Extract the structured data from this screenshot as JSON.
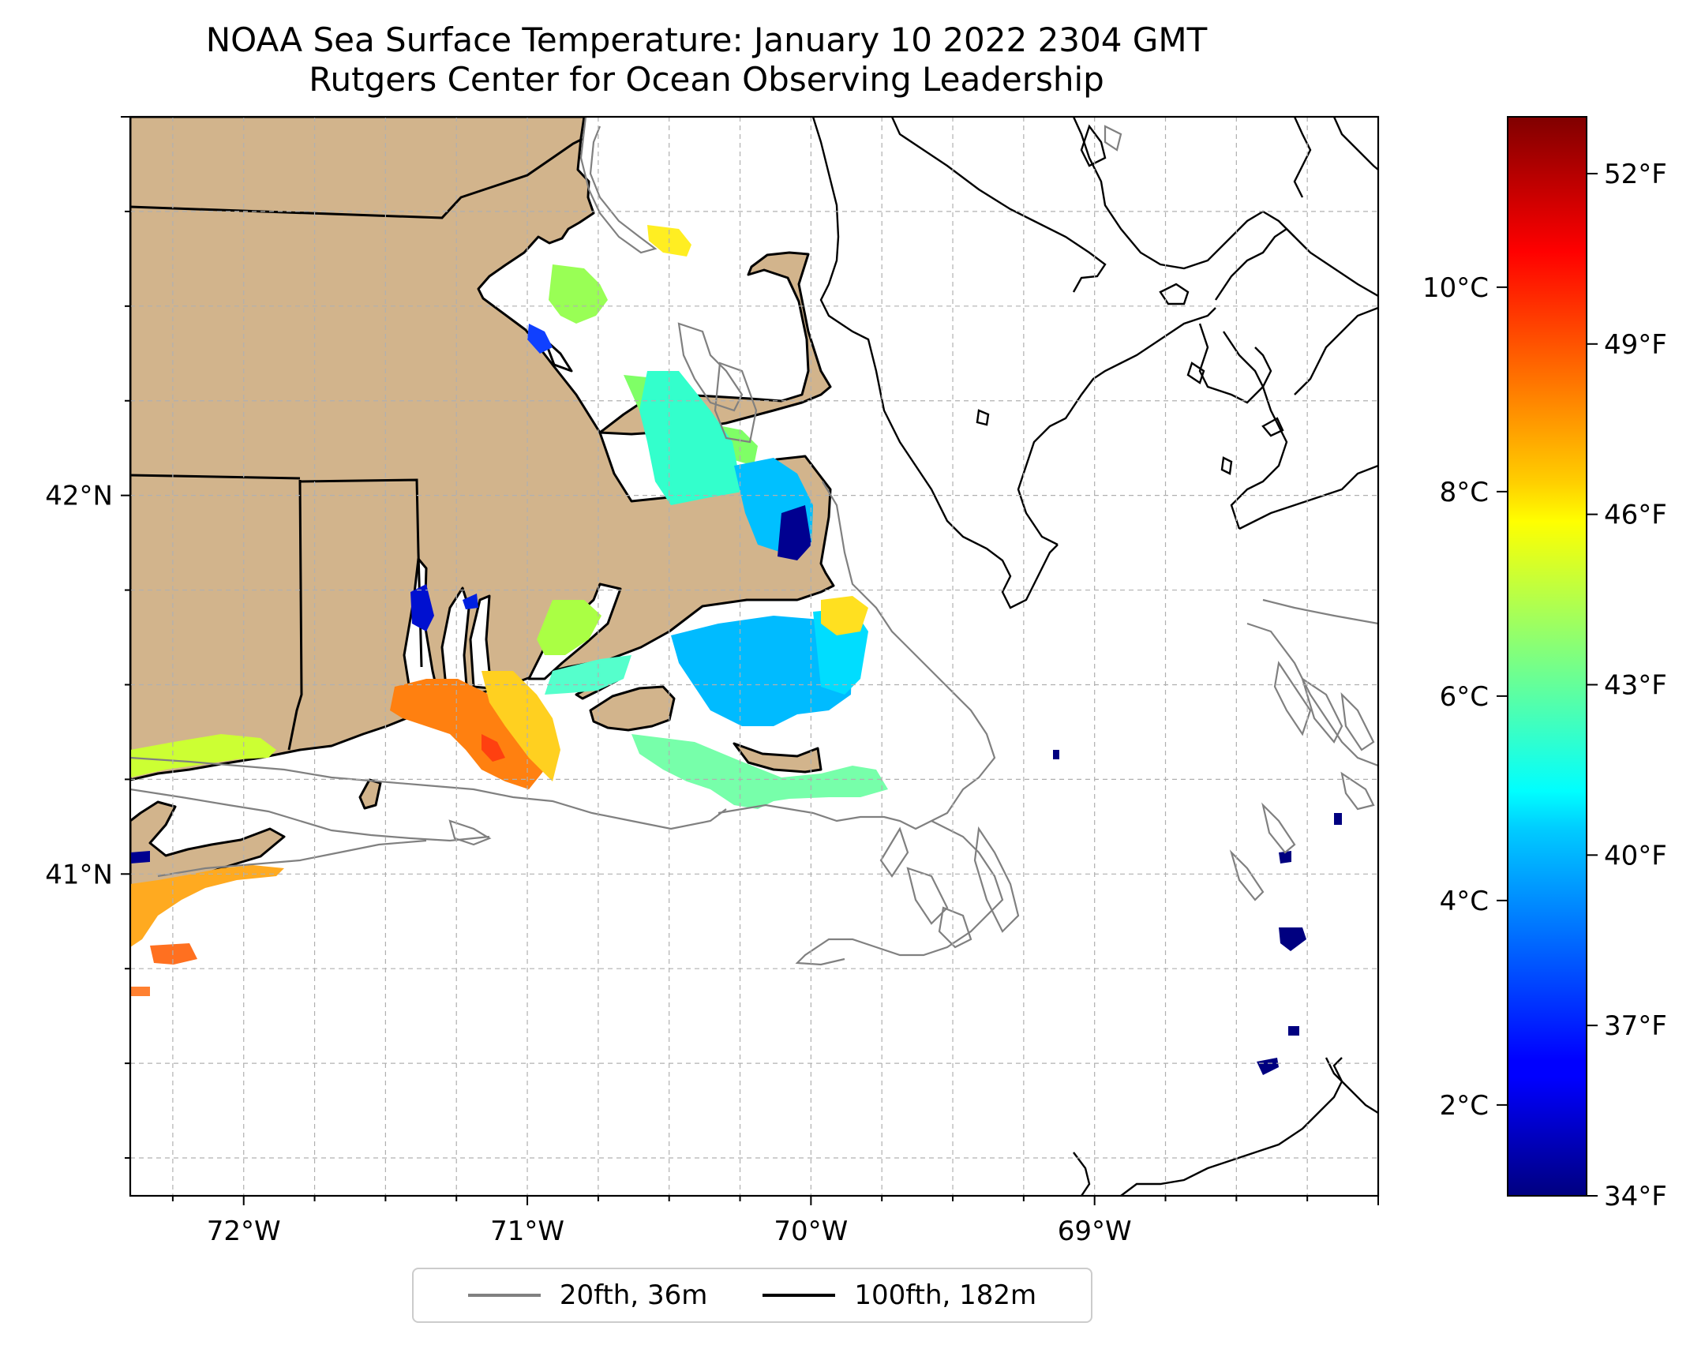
{
  "title": {
    "line1": "NOAA Sea Surface Temperature: January 10 2022 2304 GMT",
    "line2": "Rutgers Center for Ocean Observing Leadership"
  },
  "map": {
    "lon_range": [
      -72.4,
      -68.0
    ],
    "lat_range": [
      40.15,
      43.0
    ],
    "lon_ticks": [
      {
        "value": -72,
        "label": "72°W"
      },
      {
        "value": -71,
        "label": "71°W"
      },
      {
        "value": -70,
        "label": "70°W"
      },
      {
        "value": -69,
        "label": "69°W"
      }
    ],
    "lat_ticks": [
      {
        "value": 41,
        "label": "41°N"
      },
      {
        "value": 42,
        "label": "42°N"
      }
    ],
    "land_color": "#d2b48c",
    "grid": true
  },
  "colorbar": {
    "colormap": "jet",
    "range_f": [
      34,
      53
    ],
    "celsius_ticks": [
      {
        "value": 2,
        "label": "2°C"
      },
      {
        "value": 4,
        "label": "4°C"
      },
      {
        "value": 6,
        "label": "6°C"
      },
      {
        "value": 8,
        "label": "8°C"
      },
      {
        "value": 10,
        "label": "10°C"
      }
    ],
    "fahrenheit_ticks": [
      {
        "value": 34,
        "label": "34°F"
      },
      {
        "value": 37,
        "label": "37°F"
      },
      {
        "value": 40,
        "label": "40°F"
      },
      {
        "value": 43,
        "label": "43°F"
      },
      {
        "value": 46,
        "label": "46°F"
      },
      {
        "value": 49,
        "label": "49°F"
      },
      {
        "value": 52,
        "label": "52°F"
      }
    ]
  },
  "legend": {
    "items": [
      {
        "label": "20fth, 36m",
        "color": "#808080"
      },
      {
        "label": "100fth, 182m",
        "color": "#000000"
      }
    ]
  }
}
